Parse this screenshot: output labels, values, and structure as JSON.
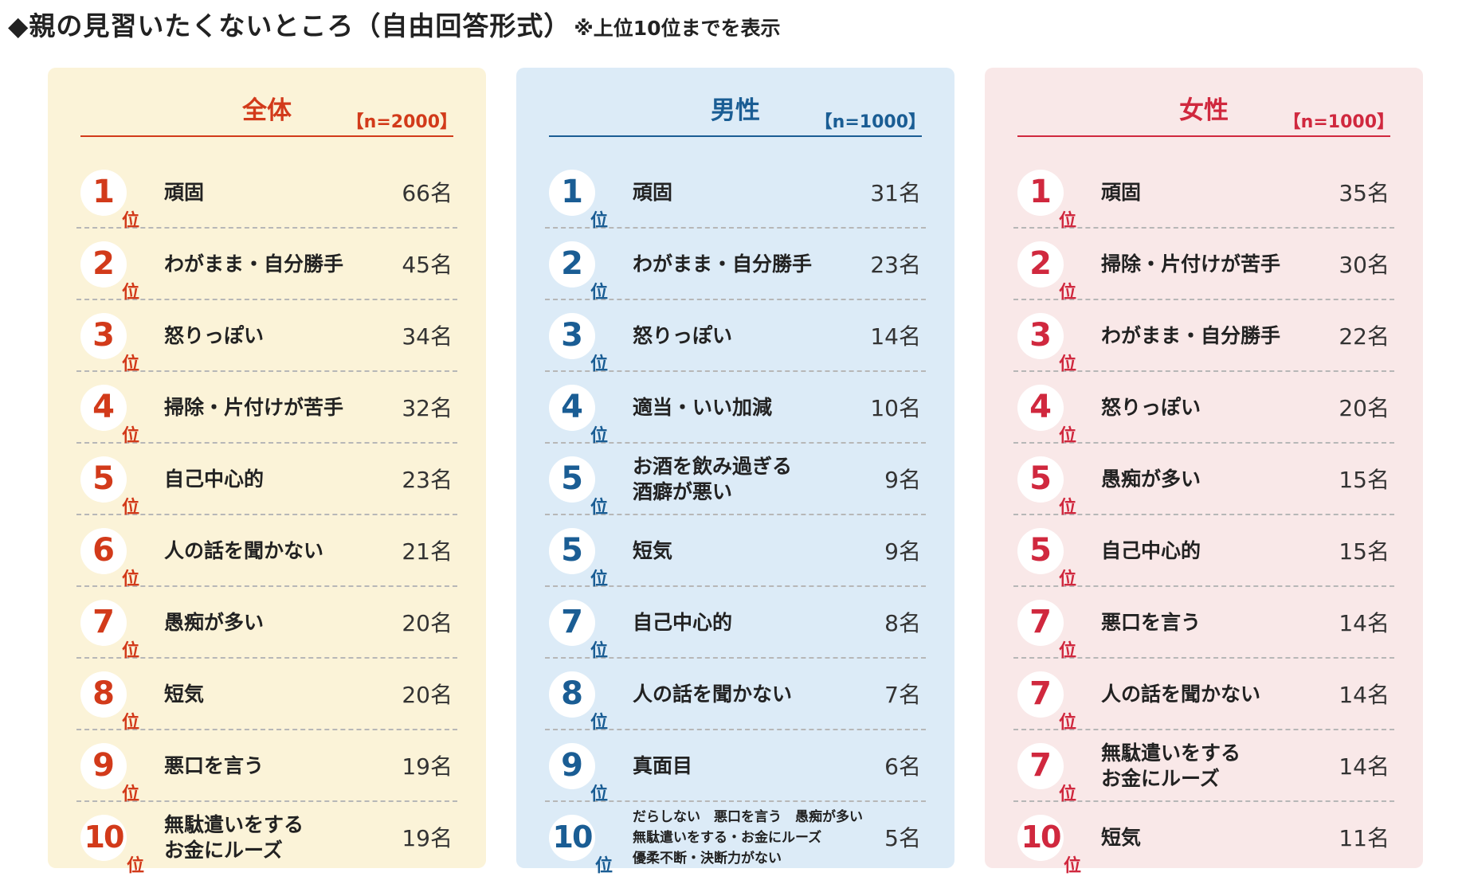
{
  "header": {
    "title": "◆親の見習いたくないところ（自由回答形式）",
    "note": "※上位10位までを表示"
  },
  "rank_suffix": "位",
  "chart_data": [
    {
      "type": "table",
      "title": "全体",
      "n_label": "【n=2000】",
      "colors": {
        "accent": "#d23a1a",
        "background": "#fbf3d8"
      },
      "rows": [
        {
          "rank": "1",
          "label": [
            "頑固"
          ],
          "count": "66名",
          "value": 66
        },
        {
          "rank": "2",
          "label": [
            "わがまま・自分勝手"
          ],
          "count": "45名",
          "value": 45
        },
        {
          "rank": "3",
          "label": [
            "怒りっぽい"
          ],
          "count": "34名",
          "value": 34
        },
        {
          "rank": "4",
          "label": [
            "掃除・片付けが苦手"
          ],
          "count": "32名",
          "value": 32
        },
        {
          "rank": "5",
          "label": [
            "自己中心的"
          ],
          "count": "23名",
          "value": 23
        },
        {
          "rank": "6",
          "label": [
            "人の話を聞かない"
          ],
          "count": "21名",
          "value": 21
        },
        {
          "rank": "7",
          "label": [
            "愚痴が多い"
          ],
          "count": "20名",
          "value": 20
        },
        {
          "rank": "8",
          "label": [
            "短気"
          ],
          "count": "20名",
          "value": 20
        },
        {
          "rank": "9",
          "label": [
            "悪口を言う"
          ],
          "count": "19名",
          "value": 19
        },
        {
          "rank": "10",
          "label": [
            "無駄遣いをする",
            "お金にルーズ"
          ],
          "count": "19名",
          "value": 19
        }
      ]
    },
    {
      "type": "table",
      "title": "男性",
      "n_label": "【n=1000】",
      "colors": {
        "accent": "#1a5d94",
        "background": "#dcebf7"
      },
      "rows": [
        {
          "rank": "1",
          "label": [
            "頑固"
          ],
          "count": "31名",
          "value": 31
        },
        {
          "rank": "2",
          "label": [
            "わがまま・自分勝手"
          ],
          "count": "23名",
          "value": 23
        },
        {
          "rank": "3",
          "label": [
            "怒りっぽい"
          ],
          "count": "14名",
          "value": 14
        },
        {
          "rank": "4",
          "label": [
            "適当・いい加減"
          ],
          "count": "10名",
          "value": 10
        },
        {
          "rank": "5",
          "label": [
            "お酒を飲み過ぎる",
            "酒癖が悪い"
          ],
          "count": "9名",
          "value": 9
        },
        {
          "rank": "5",
          "label": [
            "短気"
          ],
          "count": "9名",
          "value": 9
        },
        {
          "rank": "7",
          "label": [
            "自己中心的"
          ],
          "count": "8名",
          "value": 8
        },
        {
          "rank": "8",
          "label": [
            "人の話を聞かない"
          ],
          "count": "7名",
          "value": 7
        },
        {
          "rank": "9",
          "label": [
            "真面目"
          ],
          "count": "6名",
          "value": 6
        },
        {
          "rank": "10",
          "label": [
            "だらしない　悪口を言う　愚痴が多い",
            "無駄遣いをする・お金にルーズ",
            "優柔不断・決断力がない"
          ],
          "count": "5名",
          "value": 5,
          "small": true
        }
      ]
    },
    {
      "type": "table",
      "title": "女性",
      "n_label": "【n=1000】",
      "colors": {
        "accent": "#d0283e",
        "background": "#f9e8e8"
      },
      "rows": [
        {
          "rank": "1",
          "label": [
            "頑固"
          ],
          "count": "35名",
          "value": 35
        },
        {
          "rank": "2",
          "label": [
            "掃除・片付けが苦手"
          ],
          "count": "30名",
          "value": 30
        },
        {
          "rank": "3",
          "label": [
            "わがまま・自分勝手"
          ],
          "count": "22名",
          "value": 22
        },
        {
          "rank": "4",
          "label": [
            "怒りっぽい"
          ],
          "count": "20名",
          "value": 20
        },
        {
          "rank": "5",
          "label": [
            "愚痴が多い"
          ],
          "count": "15名",
          "value": 15
        },
        {
          "rank": "5",
          "label": [
            "自己中心的"
          ],
          "count": "15名",
          "value": 15
        },
        {
          "rank": "7",
          "label": [
            "悪口を言う"
          ],
          "count": "14名",
          "value": 14
        },
        {
          "rank": "7",
          "label": [
            "人の話を聞かない"
          ],
          "count": "14名",
          "value": 14
        },
        {
          "rank": "7",
          "label": [
            "無駄遣いをする",
            "お金にルーズ"
          ],
          "count": "14名",
          "value": 14
        },
        {
          "rank": "10",
          "label": [
            "短気"
          ],
          "count": "11名",
          "value": 11
        }
      ]
    }
  ]
}
